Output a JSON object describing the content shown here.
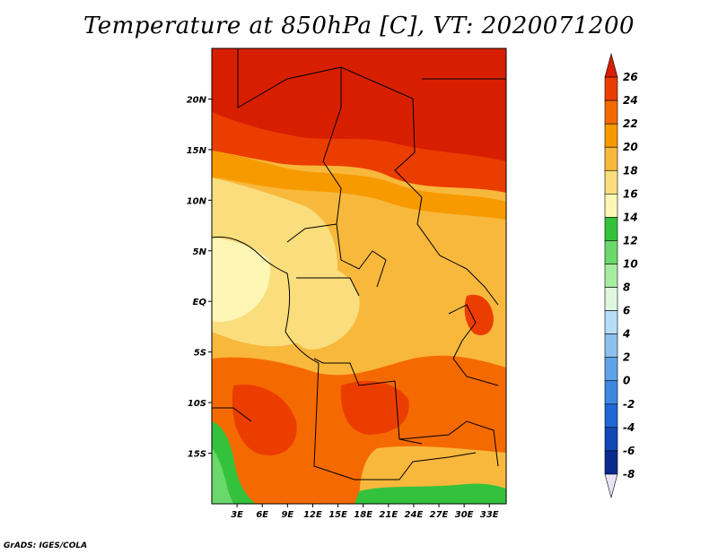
{
  "title": "Temperature at 850hPa [C], VT: 2020071200",
  "credit": "GrADS: IGES/COLA",
  "map": {
    "lon_range": [
      0,
      35
    ],
    "lat_range": [
      -20,
      25
    ],
    "lat_ticks": [
      {
        "value": 20,
        "label": "20N"
      },
      {
        "value": 15,
        "label": "15N"
      },
      {
        "value": 10,
        "label": "10N"
      },
      {
        "value": 5,
        "label": "5N"
      },
      {
        "value": 0,
        "label": "EQ"
      },
      {
        "value": -5,
        "label": "5S"
      },
      {
        "value": -10,
        "label": "10S"
      },
      {
        "value": -15,
        "label": "15S"
      }
    ],
    "lon_ticks": [
      {
        "value": 3,
        "label": "3E"
      },
      {
        "value": 6,
        "label": "6E"
      },
      {
        "value": 9,
        "label": "9E"
      },
      {
        "value": 12,
        "label": "12E"
      },
      {
        "value": 15,
        "label": "15E"
      },
      {
        "value": 18,
        "label": "18E"
      },
      {
        "value": 21,
        "label": "21E"
      },
      {
        "value": 24,
        "label": "24E"
      },
      {
        "value": 27,
        "label": "27E"
      },
      {
        "value": 30,
        "label": "30E"
      },
      {
        "value": 33,
        "label": "33E"
      }
    ]
  },
  "colorbar": {
    "levels": [
      "26",
      "24",
      "22",
      "20",
      "18",
      "16",
      "14",
      "12",
      "10",
      "8",
      "6",
      "4",
      "2",
      "0",
      "-2",
      "-4",
      "-6",
      "-8"
    ],
    "colors": [
      "#d71f00",
      "#ec3d00",
      "#f56a00",
      "#f79a00",
      "#f8b83c",
      "#fadd7c",
      "#fdf6b4",
      "#34c23c",
      "#6bd86b",
      "#a6eda1",
      "#dff7df",
      "#b7dcf6",
      "#8cc0ee",
      "#5fa3e9",
      "#3c88e1",
      "#1f66d6",
      "#0f49b8",
      "#0a2b8e",
      "#03157a"
    ],
    "end_low": "#e8e4f5"
  },
  "regions": [
    {
      "name": "north-band-hot",
      "color": "#d71f00"
    },
    {
      "name": "sahel-band",
      "color": "#ec3d00"
    },
    {
      "name": "central-warm",
      "color": "#f79a00"
    },
    {
      "name": "central-mild",
      "color": "#f8b83c"
    },
    {
      "name": "coast-cool",
      "color": "#fadd7c"
    },
    {
      "name": "south-warm",
      "color": "#f56a00"
    },
    {
      "name": "southwest-green",
      "color": "#34c23c"
    }
  ]
}
